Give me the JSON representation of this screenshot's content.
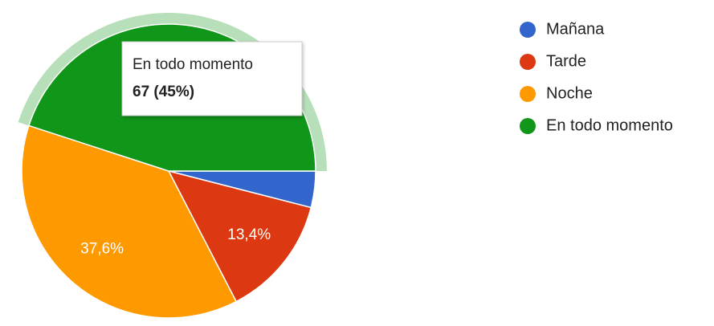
{
  "chart_data": {
    "type": "pie",
    "categories": [
      "Mañana",
      "Tarde",
      "Noche",
      "En todo momento"
    ],
    "values": [
      4,
      13.4,
      37.6,
      45
    ],
    "value_labels": [
      null,
      "13,4%",
      "37,6%",
      null
    ],
    "colors": [
      "#3366cc",
      "#dc3912",
      "#ff9900",
      "#109618"
    ],
    "highlighted": 3,
    "tooltip": {
      "name": "En todo momento",
      "text": "67 (45%)"
    },
    "legend": "right"
  }
}
